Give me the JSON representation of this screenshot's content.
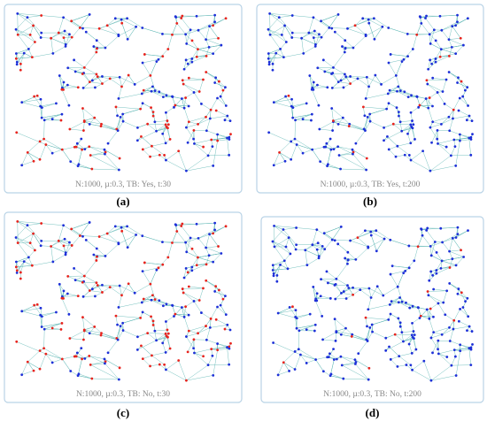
{
  "panels": [
    {
      "caption": "N:1000, µ:0.3, TB: Yes, t:30",
      "label": "(a)"
    },
    {
      "caption": "N:1000, µ:0.3, TB: Yes, t:200",
      "label": "(b)"
    },
    {
      "caption": "N:1000, µ:0.3, TB: No, t:30",
      "label": "(c)"
    },
    {
      "caption": "N:1000, µ:0.3, TB: No, t:200",
      "label": "(d)"
    }
  ]
}
